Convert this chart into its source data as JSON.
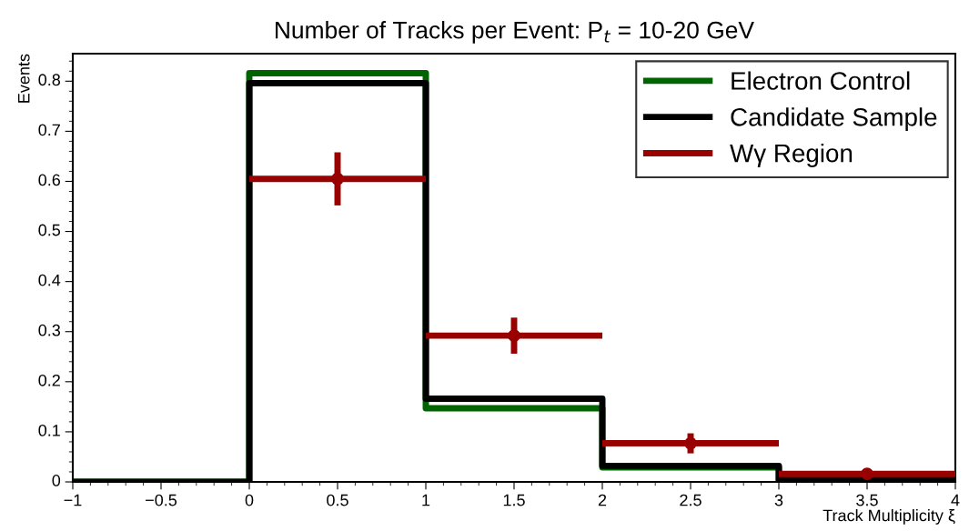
{
  "chart_data": {
    "type": "histogram",
    "title": "Number of Tracks per Event: P$_{t}$ = 10-20 GeV",
    "xlabel": "Track Multiplicity ξ",
    "ylabel": "Events",
    "bins": [
      -1,
      0,
      1,
      2,
      3,
      4
    ],
    "series": [
      {
        "name": "Electron Control",
        "color": "#006400",
        "values": [
          0,
          0.816,
          0.147,
          0.029,
          0.004
        ]
      },
      {
        "name": "Candidate Sample",
        "color": "#000000",
        "values": [
          0,
          0.796,
          0.166,
          0.032,
          0.004
        ]
      },
      {
        "name": "Wγ Region",
        "type": "scatter",
        "color": "#990000",
        "x": [
          0.5,
          1.5,
          2.5,
          3.5
        ],
        "values": [
          0.605,
          0.292,
          0.077,
          0.016
        ],
        "errors": [
          0.053,
          0.036,
          0.02,
          0.005
        ],
        "xerrors": [
          0.5,
          0.5,
          0.5,
          0.5
        ],
        "marker": "circle"
      }
    ],
    "xlim": [
      -1,
      4
    ],
    "ylim": [
      0,
      0.855
    ],
    "xticks": [
      {
        "value": -1,
        "label": "−1"
      },
      {
        "value": -0.5,
        "label": "−0.5"
      },
      0,
      0.5,
      1,
      1.5,
      2,
      2.5,
      3,
      3.5,
      4
    ],
    "yticks": [
      0,
      0.1,
      0.2,
      0.3,
      0.4,
      0.5,
      0.6,
      0.7,
      0.8
    ],
    "legend": "top right",
    "grid": false
  }
}
